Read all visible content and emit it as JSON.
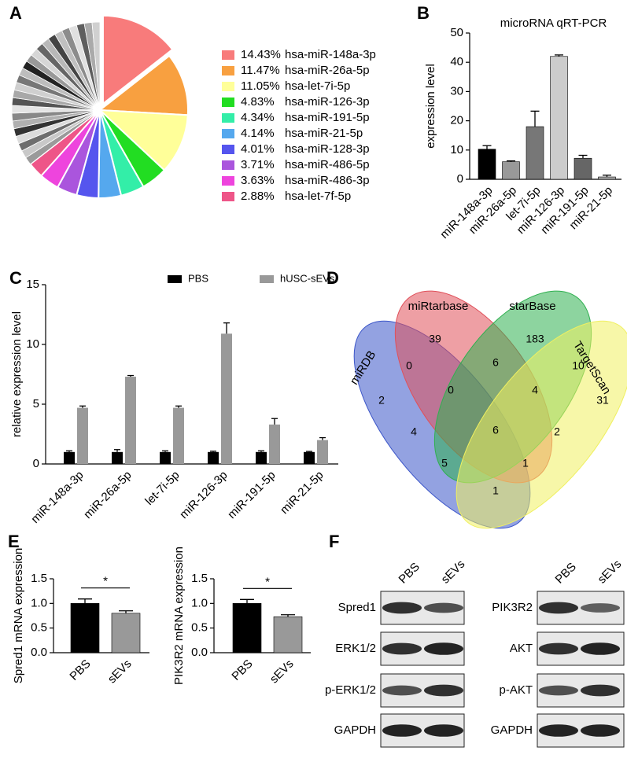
{
  "chart_data": [
    {
      "type": "pie",
      "panel": "A",
      "categories": [
        "hsa-miR-148a-3p",
        "hsa-miR-26a-5p",
        "hsa-let-7i-5p",
        "hsa-miR-126-3p",
        "hsa-miR-191-5p",
        "hsa-miR-21-5p",
        "hsa-miR-128-3p",
        "hsa-miR-486-5p",
        "hsa-miR-486-3p",
        "hsa-let-7f-5p",
        null,
        null,
        null,
        null,
        null,
        null,
        null,
        null,
        null,
        null,
        null,
        null,
        null,
        null,
        null,
        null,
        null,
        null,
        null,
        null,
        null,
        null,
        null,
        null,
        null
      ],
      "values": [
        14.43,
        11.47,
        11.05,
        4.83,
        4.34,
        4.14,
        4.01,
        3.71,
        3.63,
        2.88,
        1.42,
        1.42,
        1.42,
        1.42,
        1.42,
        1.42,
        1.42,
        1.42,
        1.42,
        1.42,
        1.42,
        1.42,
        1.42,
        1.42,
        1.42,
        1.42,
        1.42,
        1.42,
        1.42,
        1.42,
        1.42,
        1.42,
        1.42,
        1.42,
        1.43
      ],
      "value_labels": [
        "14.43%",
        "11.47%",
        "11.05%",
        "4.83%",
        "4.34%",
        "4.14%",
        "4.01%",
        "3.71%",
        "3.63%",
        "2.88%",
        null,
        null,
        null,
        null,
        null,
        null,
        null,
        null,
        null,
        null,
        null,
        null,
        null,
        null,
        null,
        null,
        null,
        null,
        null,
        null,
        null,
        null,
        null,
        null,
        null
      ],
      "colors": [
        "#f87b7b",
        "#f8a040",
        "#ffff99",
        "#22dd22",
        "#33eea8",
        "#55a8ee",
        "#5555ee",
        "#aa55dd",
        "#ee44dd",
        "#ee5588",
        "#9a9a9a",
        "#c8c8c8",
        "#6e6e6e",
        "#dcdcdc",
        "#333333",
        "#b0b0b0",
        "#888888",
        "#e4e4e4",
        "#555555",
        "#a8a8a8",
        "#cfcfcf",
        "#777777",
        "#bdbdbd",
        "#222222",
        "#999999",
        "#d6d6d6",
        "#666666",
        "#b8b8b8",
        "#444444",
        "#c0c0c0",
        "#8c8c8c",
        "#e0e0e0",
        "#5e5e5e",
        "#aaaaaa",
        "#d0d0d0"
      ]
    },
    {
      "type": "bar",
      "panel": "B",
      "title": "microRNA qRT-PCR",
      "y_label": "expression level",
      "categories": [
        "miR-148a-3p",
        "miR-26a-5p",
        "let-7i-5p",
        "miR-126-3p",
        "miR-191-5p",
        "miR-21-5p"
      ],
      "values": [
        10.3,
        6,
        18,
        42,
        7.2,
        0.8
      ],
      "errors": [
        1.2,
        0.3,
        5.3,
        0.5,
        1,
        0.6
      ],
      "colors": [
        "#000000",
        "#999999",
        "#777777",
        "#cccccc",
        "#666666",
        "#aaaaaa"
      ],
      "ylim": [
        0,
        50
      ],
      "yticks": [
        0,
        10,
        20,
        30,
        40,
        50
      ]
    },
    {
      "type": "grouped_bar",
      "panel": "C",
      "y_label": "relative expression level",
      "categories": [
        "miR-148a-3p",
        "miR-26a-5p",
        "let-7i-5p",
        "miR-126-3p",
        "miR-191-5p",
        "miR-21-5p"
      ],
      "series": [
        {
          "name": "PBS",
          "color": "#000000",
          "values": [
            1,
            1,
            1,
            1,
            1,
            1
          ],
          "errors": [
            0.1,
            0.2,
            0.1,
            0.07,
            0.1,
            0.05
          ]
        },
        {
          "name": "hUSC-sEVs",
          "color": "#999999",
          "values": [
            4.7,
            7.3,
            4.7,
            10.9,
            3.3,
            2.0
          ],
          "errors": [
            0.15,
            0.1,
            0.15,
            0.9,
            0.5,
            0.2
          ]
        }
      ],
      "ylim": [
        0,
        15
      ],
      "yticks": [
        0,
        5,
        10,
        15
      ]
    },
    {
      "type": "venn",
      "panel": "D",
      "sets": [
        "miRDB",
        "miRtarbase",
        "starBase",
        "TargetScan"
      ],
      "regions": [
        39,
        183,
        0,
        6,
        10,
        2,
        0,
        4,
        31,
        4,
        6,
        2,
        5,
        1,
        1
      ]
    },
    {
      "type": "bar",
      "panel": "E",
      "y_label": "Spred1 mRNA expression",
      "annotation": "*",
      "categories": [
        "PBS",
        "sEVs"
      ],
      "values": [
        1.0,
        0.8
      ],
      "errors": [
        0.09,
        0.05
      ],
      "colors": [
        "#000000",
        "#999999"
      ],
      "ylim": [
        0,
        1.5
      ],
      "yticks": [
        {
          "value": 0,
          "label": "0.0"
        },
        {
          "value": 0.5,
          "label": "0.5"
        },
        {
          "value": 1,
          "label": "1.0"
        },
        {
          "value": 1.5,
          "label": "1.5"
        }
      ]
    },
    {
      "type": "bar",
      "y_label": "PIK3R2 mRNA expression",
      "annotation": "*",
      "categories": [
        "PBS",
        "sEVs"
      ],
      "values": [
        1.0,
        0.73
      ],
      "errors": [
        0.08,
        0.04
      ],
      "colors": [
        "#000000",
        "#999999"
      ],
      "ylim": [
        0,
        1.5
      ],
      "yticks": [
        {
          "value": 0,
          "label": "0.0"
        },
        {
          "value": 0.5,
          "label": "0.5"
        },
        {
          "value": 1,
          "label": "1.0"
        },
        {
          "value": 1.5,
          "label": "1.5"
        }
      ]
    }
  ],
  "blot_panel": {
    "panel": "F",
    "left_lanes": [
      "PBS",
      "sEVs"
    ],
    "left_rows": [
      "Spred1",
      "ERK1/2",
      "p-ERK1/2",
      "GAPDH"
    ],
    "right_lanes": [
      "PBS",
      "sEVs"
    ],
    "right_rows": [
      "PIK3R2",
      "AKT",
      "p-AKT",
      "GAPDH"
    ]
  }
}
